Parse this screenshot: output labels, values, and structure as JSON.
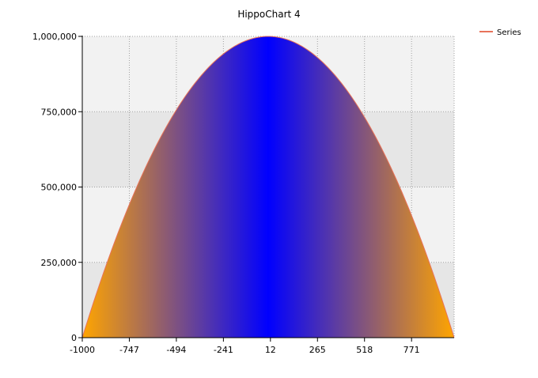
{
  "chart_data": {
    "type": "area",
    "title": "HippoChart 4",
    "xlabel": "",
    "ylabel": "",
    "xlim": [
      -1000,
      1000
    ],
    "ylim": [
      0,
      1000000
    ],
    "x_ticks": [
      -1000,
      -747,
      -494,
      -241,
      12,
      265,
      518,
      771
    ],
    "x_tick_labels": [
      "-1000",
      "-747",
      "-494",
      "-241",
      "12",
      "265",
      "518",
      "771"
    ],
    "y_ticks": [
      0,
      250000,
      500000,
      750000,
      1000000
    ],
    "y_tick_labels": [
      "0",
      "250,000",
      "500,000",
      "750,000",
      "1,000,000"
    ],
    "grid": true,
    "legend_position": "top-right",
    "series": [
      {
        "name": "Series",
        "function": "y = 1000000 - x^2",
        "x": [
          -1000,
          -900,
          -800,
          -700,
          -600,
          -500,
          -400,
          -300,
          -200,
          -100,
          0,
          100,
          200,
          300,
          400,
          500,
          600,
          700,
          800,
          900,
          1000
        ],
        "values": [
          0,
          190000,
          360000,
          510000,
          640000,
          750000,
          840000,
          910000,
          960000,
          990000,
          1000000,
          990000,
          960000,
          910000,
          840000,
          750000,
          640000,
          510000,
          360000,
          190000,
          0
        ],
        "line_color": "#e8735a",
        "fill_edge_color": "#ffa500",
        "fill_center_color": "#0000ff"
      }
    ],
    "colors": {
      "plot_band_light": "#f2f2f2",
      "plot_band_dark": "#e6e6e6",
      "grid": "#a0a0a0",
      "axis": "#000000"
    }
  }
}
